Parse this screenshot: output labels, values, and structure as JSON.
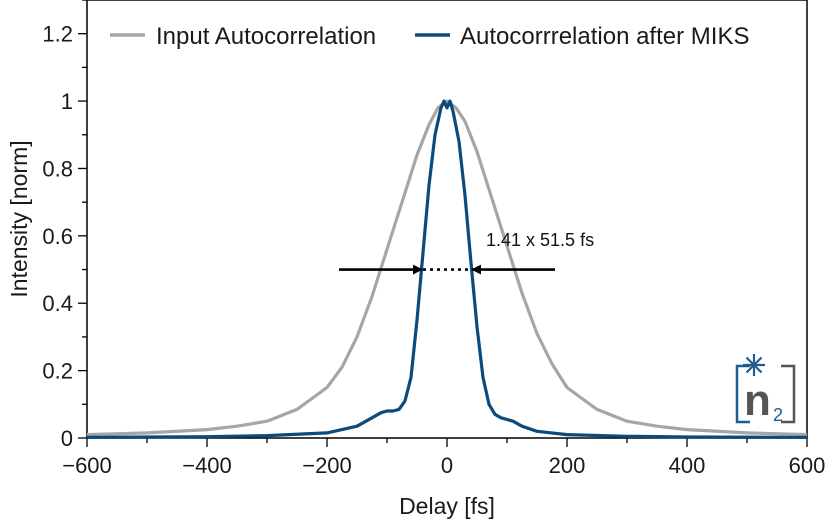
{
  "colors": {
    "input_series": "#a6a6a6",
    "miks_series": "#0d4a7c",
    "axis": "#000000",
    "annotation": "#000000",
    "logo_blue": "#1f5c8f",
    "logo_grey": "#555555"
  },
  "logo": {
    "icon": "n2-logo-icon",
    "main": "n",
    "sub": "2"
  },
  "chart_data": {
    "type": "line",
    "title": "",
    "xlabel": "Delay [fs]",
    "ylabel": "Intensity [norm]",
    "xlim": [
      -600,
      600
    ],
    "ylim": [
      0,
      1.3
    ],
    "grid": false,
    "legend_position": "top",
    "x_ticks": [
      -600,
      -400,
      -200,
      0,
      200,
      400,
      600
    ],
    "x_tick_labels": [
      "−600",
      "−400",
      "−200",
      "0",
      "200",
      "400",
      "600"
    ],
    "y_ticks": [
      0,
      0.2,
      0.4,
      0.6,
      0.8,
      1,
      1.2
    ],
    "y_tick_labels": [
      "0",
      "0.2",
      "0.4",
      "0.6",
      "0.8",
      "1",
      "1.2"
    ],
    "series": [
      {
        "name": "Input Autocorrelation",
        "x": [
          -600,
          -500,
          -400,
          -350,
          -300,
          -250,
          -200,
          -175,
          -150,
          -125,
          -100,
          -75,
          -50,
          -30,
          -15,
          0,
          15,
          30,
          50,
          75,
          100,
          125,
          150,
          175,
          200,
          250,
          300,
          350,
          400,
          500,
          600
        ],
        "y": [
          0.01,
          0.015,
          0.025,
          0.035,
          0.05,
          0.085,
          0.15,
          0.21,
          0.3,
          0.42,
          0.56,
          0.7,
          0.84,
          0.93,
          0.98,
          1.0,
          0.98,
          0.94,
          0.85,
          0.71,
          0.57,
          0.43,
          0.31,
          0.22,
          0.15,
          0.085,
          0.05,
          0.035,
          0.025,
          0.015,
          0.01
        ]
      },
      {
        "name": "Autocorrrelation after MIKS",
        "x": [
          -600,
          -400,
          -300,
          -200,
          -150,
          -125,
          -110,
          -100,
          -90,
          -80,
          -70,
          -60,
          -50,
          -40,
          -30,
          -20,
          -10,
          -5,
          0,
          5,
          10,
          20,
          30,
          40,
          50,
          60,
          70,
          80,
          90,
          100,
          110,
          125,
          150,
          200,
          300,
          400,
          600
        ],
        "y": [
          0.002,
          0.004,
          0.007,
          0.015,
          0.035,
          0.06,
          0.075,
          0.08,
          0.08,
          0.085,
          0.11,
          0.18,
          0.35,
          0.55,
          0.75,
          0.9,
          0.98,
          1.0,
          0.98,
          1.0,
          0.97,
          0.88,
          0.72,
          0.52,
          0.33,
          0.18,
          0.1,
          0.07,
          0.06,
          0.055,
          0.05,
          0.035,
          0.02,
          0.01,
          0.005,
          0.003,
          0.002
        ]
      }
    ],
    "annotations": [
      {
        "text": "1.41 x 51.5 fs",
        "x": 65,
        "y": 0.57
      }
    ],
    "fwhm_marker": {
      "y": 0.5,
      "dotted_from": -40,
      "dotted_to": 40,
      "left_arrow_from": -180,
      "left_arrow_to": -42,
      "right_arrow_from": 180,
      "right_arrow_to": 42
    }
  }
}
